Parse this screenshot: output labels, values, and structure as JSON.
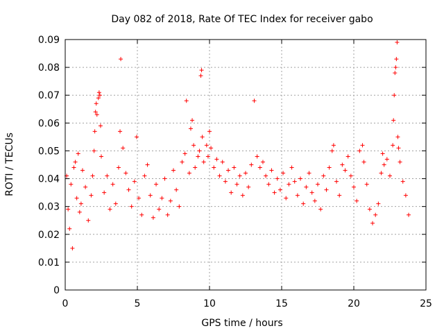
{
  "chart_data": {
    "type": "scatter",
    "title": "Day 082 of 2018, Rate Of TEC Index for receiver gabo",
    "xlabel": "GPS time / hours",
    "ylabel": "ROTI / TECUs",
    "xlim": [
      0,
      25
    ],
    "ylim": [
      0,
      0.09
    ],
    "xticks": [
      0,
      5,
      10,
      15,
      20,
      25
    ],
    "xtick_labels": [
      "0",
      "5",
      "10",
      "15",
      "20",
      "25"
    ],
    "yticks": [
      0,
      0.01,
      0.02,
      0.03,
      0.04,
      0.05,
      0.06,
      0.07,
      0.08,
      0.09
    ],
    "ytick_labels": [
      "0",
      "0.01",
      "0.02",
      "0.03",
      "0.04",
      "0.05",
      "0.06",
      "0.07",
      "0.08",
      "0.09"
    ],
    "grid": true,
    "marker": "plus",
    "color": "#ff0000",
    "series": [
      {
        "points": [
          [
            0.1,
            0.041
          ],
          [
            0.2,
            0.029
          ],
          [
            0.3,
            0.022
          ],
          [
            0.4,
            0.038
          ],
          [
            0.5,
            0.015
          ],
          [
            0.6,
            0.044
          ],
          [
            0.7,
            0.046
          ],
          [
            0.8,
            0.033
          ],
          [
            0.9,
            0.049
          ],
          [
            1.0,
            0.028
          ],
          [
            1.1,
            0.031
          ],
          [
            1.2,
            0.043
          ],
          [
            1.4,
            0.037
          ],
          [
            1.6,
            0.025
          ],
          [
            1.8,
            0.034
          ],
          [
            1.9,
            0.041
          ],
          [
            2.0,
            0.05
          ],
          [
            2.05,
            0.057
          ],
          [
            2.1,
            0.064
          ],
          [
            2.15,
            0.067
          ],
          [
            2.2,
            0.063
          ],
          [
            2.3,
            0.069
          ],
          [
            2.35,
            0.071
          ],
          [
            2.4,
            0.07
          ],
          [
            2.45,
            0.059
          ],
          [
            2.5,
            0.048
          ],
          [
            2.7,
            0.035
          ],
          [
            2.9,
            0.041
          ],
          [
            3.1,
            0.029
          ],
          [
            3.3,
            0.038
          ],
          [
            3.5,
            0.031
          ],
          [
            3.7,
            0.044
          ],
          [
            3.8,
            0.057
          ],
          [
            3.85,
            0.083
          ],
          [
            4.0,
            0.051
          ],
          [
            4.2,
            0.042
          ],
          [
            4.4,
            0.036
          ],
          [
            4.6,
            0.03
          ],
          [
            4.8,
            0.039
          ],
          [
            4.95,
            0.055
          ],
          [
            5.1,
            0.033
          ],
          [
            5.3,
            0.027
          ],
          [
            5.5,
            0.041
          ],
          [
            5.7,
            0.045
          ],
          [
            5.9,
            0.034
          ],
          [
            6.1,
            0.026
          ],
          [
            6.3,
            0.038
          ],
          [
            6.5,
            0.029
          ],
          [
            6.7,
            0.033
          ],
          [
            6.9,
            0.04
          ],
          [
            7.1,
            0.027
          ],
          [
            7.3,
            0.032
          ],
          [
            7.5,
            0.043
          ],
          [
            7.7,
            0.036
          ],
          [
            7.9,
            0.03
          ],
          [
            8.1,
            0.046
          ],
          [
            8.3,
            0.049
          ],
          [
            8.4,
            0.068
          ],
          [
            8.6,
            0.042
          ],
          [
            8.7,
            0.058
          ],
          [
            8.8,
            0.061
          ],
          [
            8.9,
            0.052
          ],
          [
            9.0,
            0.044
          ],
          [
            9.2,
            0.048
          ],
          [
            9.3,
            0.05
          ],
          [
            9.4,
            0.077
          ],
          [
            9.45,
            0.079
          ],
          [
            9.5,
            0.055
          ],
          [
            9.6,
            0.046
          ],
          [
            9.8,
            0.052
          ],
          [
            9.9,
            0.048
          ],
          [
            10.0,
            0.057
          ],
          [
            10.1,
            0.051
          ],
          [
            10.3,
            0.044
          ],
          [
            10.5,
            0.047
          ],
          [
            10.7,
            0.041
          ],
          [
            10.9,
            0.046
          ],
          [
            11.1,
            0.039
          ],
          [
            11.3,
            0.043
          ],
          [
            11.5,
            0.035
          ],
          [
            11.7,
            0.044
          ],
          [
            11.9,
            0.038
          ],
          [
            12.1,
            0.041
          ],
          [
            12.3,
            0.034
          ],
          [
            12.5,
            0.042
          ],
          [
            12.7,
            0.037
          ],
          [
            12.9,
            0.045
          ],
          [
            13.1,
            0.068
          ],
          [
            13.3,
            0.048
          ],
          [
            13.5,
            0.044
          ],
          [
            13.7,
            0.046
          ],
          [
            13.9,
            0.041
          ],
          [
            14.1,
            0.038
          ],
          [
            14.3,
            0.043
          ],
          [
            14.5,
            0.035
          ],
          [
            14.7,
            0.04
          ],
          [
            14.9,
            0.036
          ],
          [
            15.1,
            0.042
          ],
          [
            15.3,
            0.033
          ],
          [
            15.5,
            0.038
          ],
          [
            15.7,
            0.044
          ],
          [
            15.9,
            0.039
          ],
          [
            16.1,
            0.034
          ],
          [
            16.3,
            0.04
          ],
          [
            16.5,
            0.031
          ],
          [
            16.7,
            0.037
          ],
          [
            16.9,
            0.042
          ],
          [
            17.1,
            0.035
          ],
          [
            17.3,
            0.032
          ],
          [
            17.5,
            0.038
          ],
          [
            17.7,
            0.029
          ],
          [
            17.9,
            0.041
          ],
          [
            18.1,
            0.036
          ],
          [
            18.3,
            0.044
          ],
          [
            18.5,
            0.05
          ],
          [
            18.6,
            0.052
          ],
          [
            18.8,
            0.039
          ],
          [
            19.0,
            0.034
          ],
          [
            19.2,
            0.045
          ],
          [
            19.4,
            0.043
          ],
          [
            19.6,
            0.048
          ],
          [
            19.8,
            0.041
          ],
          [
            20.0,
            0.037
          ],
          [
            20.2,
            0.032
          ],
          [
            20.4,
            0.05
          ],
          [
            20.6,
            0.052
          ],
          [
            20.7,
            0.046
          ],
          [
            20.9,
            0.038
          ],
          [
            21.1,
            0.029
          ],
          [
            21.3,
            0.024
          ],
          [
            21.5,
            0.027
          ],
          [
            21.7,
            0.031
          ],
          [
            21.9,
            0.042
          ],
          [
            22.0,
            0.049
          ],
          [
            22.1,
            0.045
          ],
          [
            22.3,
            0.047
          ],
          [
            22.5,
            0.041
          ],
          [
            22.7,
            0.052
          ],
          [
            22.75,
            0.061
          ],
          [
            22.8,
            0.07
          ],
          [
            22.85,
            0.078
          ],
          [
            22.9,
            0.08
          ],
          [
            22.95,
            0.083
          ],
          [
            23.0,
            0.089
          ],
          [
            23.05,
            0.055
          ],
          [
            23.1,
            0.051
          ],
          [
            23.2,
            0.046
          ],
          [
            23.4,
            0.039
          ],
          [
            23.6,
            0.034
          ],
          [
            23.8,
            0.027
          ]
        ]
      }
    ]
  }
}
